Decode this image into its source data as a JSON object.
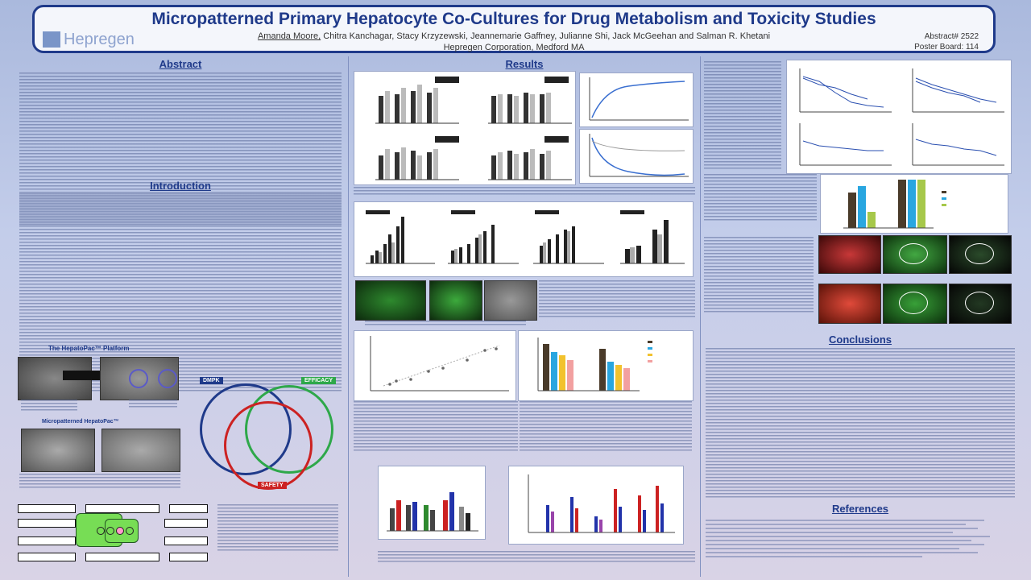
{
  "poster": {
    "title": "Micropatterned Primary Hepatocyte Co-Cultures for Drug Metabolism and Toxicity Studies",
    "authors_first": "Amanda Moore,",
    "authors_rest": " Chitra Kanchagar, Stacy Krzyzewski, Jeannemarie Gaffney, Julianne Shi, Jack McGeehan and Salman R. Khetani",
    "affiliation": "Hepregen Corporation, Medford MA",
    "logo_text": "Hepregen",
    "abstract_no": "Abstract# 2522",
    "poster_board": "Poster Board: 114"
  },
  "sections": {
    "abstract": "Abstract",
    "introduction": "Introduction",
    "results": "Results",
    "conclusions": "Conclusions",
    "references": "References"
  },
  "platform": {
    "title": "The HepatoPac™ Platform",
    "micro_title": "Micropatterned HepatoPac™",
    "tags": {
      "dmpk": "DMPK",
      "efficacy": "EFFICACY",
      "safety": "SAFETY"
    }
  },
  "colors": {
    "header_border": "#1f3a8a",
    "title": "#1f3a8a",
    "dmpk": "#1f3a8a",
    "efficacy": "#2ea84a",
    "safety": "#cc2222"
  }
}
